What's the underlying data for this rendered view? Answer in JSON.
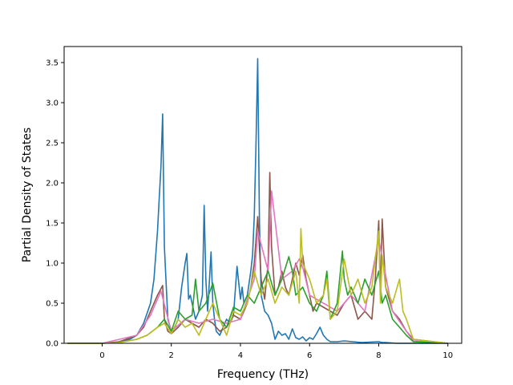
{
  "chart_data": {
    "type": "line",
    "xlabel": "Frequency (THz)",
    "ylabel": "Partial Density of States",
    "xlim": [
      -1.1,
      10.4
    ],
    "ylim": [
      0,
      3.7
    ],
    "xticks": [
      0,
      2,
      4,
      6,
      8,
      10
    ],
    "yticks": [
      0.0,
      0.5,
      1.0,
      1.5,
      2.0,
      2.5,
      3.0,
      3.5
    ],
    "ytick_labels": [
      "0.0",
      "0.5",
      "1.0",
      "1.5",
      "2.0",
      "2.5",
      "3.0",
      "3.5"
    ],
    "grid": false,
    "legend": "none",
    "series": [
      {
        "color": "#1f77b4",
        "x": [
          -1.0,
          0.0,
          0.5,
          0.8,
          1.0,
          1.2,
          1.4,
          1.5,
          1.6,
          1.65,
          1.7,
          1.75,
          1.8,
          1.9,
          2.0,
          2.1,
          2.2,
          2.3,
          2.4,
          2.45,
          2.5,
          2.55,
          2.6,
          2.7,
          2.8,
          2.9,
          2.95,
          3.0,
          3.05,
          3.1,
          3.15,
          3.2,
          3.25,
          3.3,
          3.4,
          3.5,
          3.6,
          3.7,
          3.8,
          3.9,
          4.0,
          4.05,
          4.1,
          4.2,
          4.3,
          4.35,
          4.4,
          4.45,
          4.5,
          4.55,
          4.6,
          4.7,
          4.8,
          4.9,
          5.0,
          5.1,
          5.2,
          5.3,
          5.4,
          5.5,
          5.6,
          5.7,
          5.8,
          5.9,
          6.0,
          6.1,
          6.2,
          6.3,
          6.4,
          6.5,
          6.6,
          6.8,
          7.0,
          7.5,
          8.0,
          8.1,
          8.2,
          8.5,
          9.0,
          10.0
        ],
        "y": [
          0,
          0,
          0.02,
          0.05,
          0.1,
          0.25,
          0.5,
          0.8,
          1.4,
          1.8,
          2.2,
          2.86,
          1.2,
          0.3,
          0.15,
          0.2,
          0.3,
          0.7,
          1.0,
          1.12,
          0.55,
          0.6,
          0.5,
          0.3,
          0.4,
          0.6,
          1.72,
          0.8,
          0.4,
          0.75,
          1.14,
          0.5,
          0.3,
          0.15,
          0.1,
          0.2,
          0.3,
          0.25,
          0.35,
          0.96,
          0.55,
          0.7,
          0.5,
          0.6,
          0.9,
          1.1,
          1.58,
          2.5,
          3.55,
          1.5,
          0.6,
          0.4,
          0.35,
          0.25,
          0.05,
          0.15,
          0.1,
          0.12,
          0.05,
          0.18,
          0.07,
          0.05,
          0.08,
          0.03,
          0.07,
          0.05,
          0.12,
          0.2,
          0.1,
          0.05,
          0.02,
          0.02,
          0.03,
          0.01,
          0.02,
          0.01,
          0.01,
          0,
          0,
          0
        ]
      },
      {
        "color": "#8c564b",
        "x": [
          -1.0,
          0.0,
          0.5,
          1.0,
          1.2,
          1.4,
          1.6,
          1.75,
          1.8,
          1.9,
          2.0,
          2.2,
          2.4,
          2.6,
          2.8,
          3.0,
          3.2,
          3.4,
          3.6,
          3.8,
          4.0,
          4.2,
          4.3,
          4.4,
          4.5,
          4.6,
          4.7,
          4.8,
          4.85,
          4.9,
          5.0,
          5.1,
          5.2,
          5.3,
          5.4,
          5.5,
          5.6,
          5.7,
          5.8,
          5.9,
          6.0,
          6.1,
          6.2,
          6.4,
          6.6,
          6.8,
          7.0,
          7.2,
          7.4,
          7.6,
          7.8,
          7.9,
          8.0,
          8.05,
          8.1,
          8.2,
          8.4,
          8.6,
          8.8,
          9.0,
          10.0
        ],
        "y": [
          0,
          0,
          0.02,
          0.1,
          0.2,
          0.4,
          0.6,
          0.72,
          0.3,
          0.15,
          0.12,
          0.2,
          0.3,
          0.25,
          0.2,
          0.3,
          0.25,
          0.15,
          0.2,
          0.35,
          0.3,
          0.5,
          0.7,
          1.0,
          1.58,
          0.8,
          0.55,
          1.0,
          2.13,
          1.2,
          0.6,
          0.7,
          0.9,
          0.7,
          0.6,
          0.8,
          1.0,
          0.85,
          1.1,
          0.8,
          0.6,
          0.4,
          0.5,
          0.45,
          0.4,
          0.35,
          0.5,
          0.6,
          0.3,
          0.4,
          0.3,
          0.8,
          1.53,
          0.6,
          1.55,
          0.7,
          0.4,
          0.3,
          0.15,
          0.05,
          0
        ]
      },
      {
        "color": "#e377c2",
        "x": [
          -1.0,
          0.0,
          1.0,
          1.4,
          1.7,
          2.0,
          2.4,
          2.8,
          3.2,
          3.6,
          4.0,
          4.4,
          4.5,
          4.8,
          4.9,
          5.2,
          5.5,
          5.7,
          5.8,
          6.0,
          6.4,
          6.8,
          7.2,
          7.6,
          8.0,
          8.4,
          8.8,
          9.0,
          10.0
        ],
        "y": [
          0,
          0,
          0.1,
          0.35,
          0.65,
          0.15,
          0.3,
          0.25,
          0.3,
          0.25,
          0.3,
          0.8,
          1.4,
          0.9,
          1.9,
          0.8,
          0.9,
          1.05,
          0.95,
          0.6,
          0.5,
          0.4,
          0.6,
          0.4,
          1.3,
          0.4,
          0.15,
          0.03,
          0
        ]
      },
      {
        "color": "#2ca02c",
        "x": [
          -1.0,
          0.0,
          0.5,
          1.0,
          1.3,
          1.6,
          1.8,
          2.0,
          2.2,
          2.4,
          2.6,
          2.7,
          2.8,
          3.0,
          3.2,
          3.4,
          3.6,
          3.8,
          4.0,
          4.2,
          4.4,
          4.6,
          4.8,
          5.0,
          5.2,
          5.4,
          5.5,
          5.6,
          5.8,
          6.0,
          6.2,
          6.4,
          6.5,
          6.6,
          6.8,
          6.95,
          7.0,
          7.1,
          7.2,
          7.4,
          7.6,
          7.8,
          8.0,
          8.1,
          8.2,
          8.4,
          8.6,
          8.8,
          9.0,
          10.0
        ],
        "y": [
          0,
          0,
          0.01,
          0.05,
          0.1,
          0.2,
          0.3,
          0.15,
          0.4,
          0.3,
          0.35,
          0.8,
          0.4,
          0.5,
          0.75,
          0.3,
          0.2,
          0.45,
          0.4,
          0.6,
          0.5,
          0.7,
          0.9,
          0.6,
          0.8,
          1.08,
          0.9,
          0.6,
          0.7,
          0.5,
          0.4,
          0.6,
          0.9,
          0.3,
          0.5,
          1.15,
          0.8,
          0.6,
          0.7,
          0.5,
          0.8,
          0.6,
          0.9,
          0.5,
          0.6,
          0.3,
          0.2,
          0.1,
          0.02,
          0
        ]
      },
      {
        "color": "#bcbd22",
        "x": [
          -1.0,
          0.0,
          0.5,
          1.0,
          1.3,
          1.6,
          1.8,
          2.0,
          2.2,
          2.4,
          2.6,
          2.8,
          3.0,
          3.2,
          3.4,
          3.6,
          3.8,
          4.0,
          4.2,
          4.4,
          4.6,
          4.8,
          5.0,
          5.2,
          5.4,
          5.6,
          5.7,
          5.75,
          5.8,
          6.0,
          6.2,
          6.4,
          6.5,
          6.6,
          6.8,
          7.0,
          7.2,
          7.4,
          7.6,
          7.8,
          8.0,
          8.05,
          8.1,
          8.2,
          8.4,
          8.6,
          8.7,
          8.8,
          9.0,
          10.0
        ],
        "y": [
          0,
          0,
          0.01,
          0.05,
          0.1,
          0.2,
          0.25,
          0.12,
          0.3,
          0.2,
          0.25,
          0.1,
          0.3,
          0.5,
          0.3,
          0.1,
          0.4,
          0.35,
          0.5,
          0.9,
          0.6,
          0.8,
          0.5,
          0.7,
          0.6,
          0.9,
          0.5,
          1.43,
          1.0,
          0.8,
          0.5,
          0.6,
          0.8,
          0.3,
          0.4,
          1.05,
          0.6,
          0.8,
          0.5,
          0.7,
          1.4,
          0.5,
          1.1,
          0.7,
          0.5,
          0.8,
          0.4,
          0.3,
          0.05,
          0
        ]
      }
    ]
  }
}
